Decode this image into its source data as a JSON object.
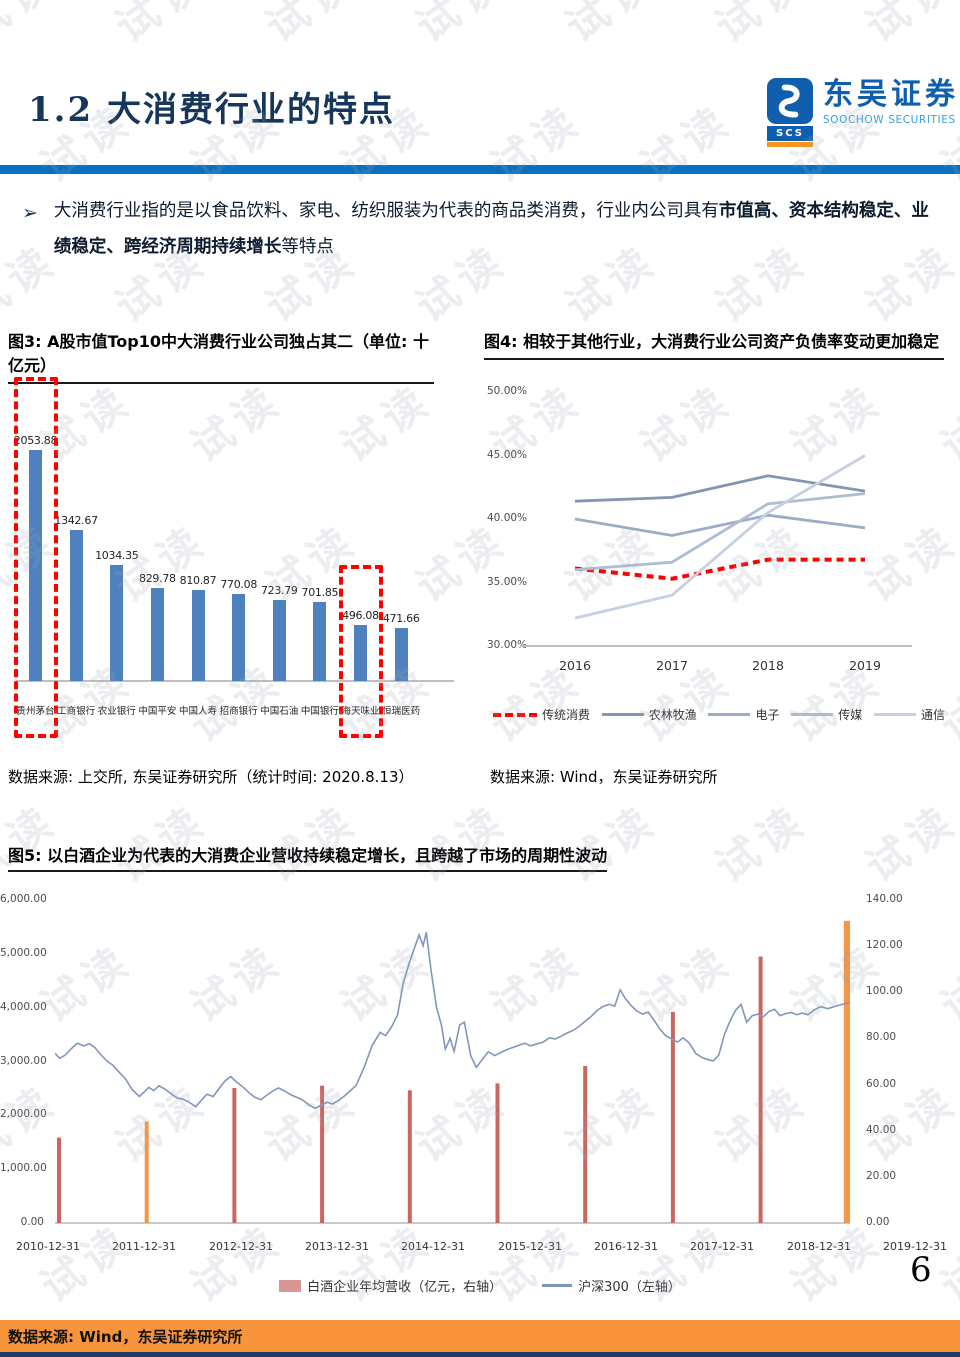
{
  "page": {
    "number": "6",
    "watermark": "试读"
  },
  "header": {
    "title": "1.2 大消费行业的特点",
    "logo": {
      "cn": "东吴证券",
      "en": "SOOCHOW SECURITIES",
      "abbr": "SCS"
    }
  },
  "intro": {
    "bullet": "➢",
    "lead": "大消费行业指的是以食品饮料、家电、纺织服装为代表的商品类消费，行业内公司具有",
    "emphasis": "市值高、资本结构稳定、业绩稳定、跨经济周期持续增长",
    "tail": "等特点"
  },
  "fig3": {
    "title": "图3: A股市值Top10中大消费行业公司独占其二（单位: 十亿元）",
    "source": "数据来源: 上交所, 东吴证券研究所（统计时间: 2020.8.13）"
  },
  "fig4": {
    "title": "图4: 相较于其他行业，大消费行业公司资产负债率变动更加稳定",
    "source": "数据来源: Wind，东吴证券研究所"
  },
  "fig5": {
    "title": "图5: 以白酒企业为代表的大消费企业营收持续稳定增长，且跨越了市场的周期性波动"
  },
  "footer": {
    "source": "数据来源: Wind，东吴证券研究所"
  },
  "chart_data": [
    {
      "type": "bar",
      "title": "图3: A股市值Top10中大消费行业公司独占其二（单位: 十亿元）",
      "unit": "十亿元",
      "categories": [
        "贵州茅台",
        "工商银行",
        "农业银行",
        "中国平安",
        "中国人寿",
        "招商银行",
        "中国石油",
        "中国银行",
        "海天味业",
        "恒瑞医药"
      ],
      "values": [
        2053.88,
        1342.67,
        1034.35,
        829.78,
        810.87,
        770.08,
        723.79,
        701.85,
        496.08,
        471.66
      ],
      "bar_color": "#4E81BD",
      "highlight_indexes": [
        0,
        8
      ],
      "highlight_style": "red-dashed-box",
      "ylim": [
        0,
        2100
      ],
      "grid": false
    },
    {
      "type": "line",
      "title": "图4: 相较于其他行业，大消费行业公司资产负债率变动更加稳定",
      "x": [
        "2016",
        "2017",
        "2018",
        "2019"
      ],
      "ylim": [
        30,
        50
      ],
      "yticks": [
        "30.00%",
        "35.00%",
        "40.00%",
        "45.00%",
        "50.00%"
      ],
      "legend_position": "bottom",
      "grid": false,
      "series": [
        {
          "name": "传统消费",
          "values": [
            36.1,
            35.3,
            36.8,
            36.8
          ],
          "color": "#FF0000",
          "dash": true
        },
        {
          "name": "农林牧渔",
          "values": [
            41.4,
            41.7,
            43.4,
            42.2
          ],
          "color": "#8496B0",
          "dash": false
        },
        {
          "name": "电子",
          "values": [
            40.0,
            38.7,
            40.3,
            39.3
          ],
          "color": "#9CACC6",
          "dash": false
        },
        {
          "name": "传媒",
          "values": [
            36.0,
            36.6,
            41.2,
            42.0
          ],
          "color": "#AFBDD4",
          "dash": false
        },
        {
          "name": "通信",
          "values": [
            32.2,
            34.0,
            40.5,
            45.0
          ],
          "color": "#C6D0E2",
          "dash": false
        }
      ]
    },
    {
      "type": "combo",
      "title": "图5: 以白酒企业为代表的大消费企业营收持续稳定增长，且跨越了市场的周期性波动",
      "categories": [
        "2010-12-31",
        "2011-12-31",
        "2012-12-31",
        "2013-12-31",
        "2014-12-31",
        "2015-12-31",
        "2016-12-31",
        "2017-12-31",
        "2018-12-31",
        "2019-12-31"
      ],
      "left_axis": {
        "range": [
          0,
          6000
        ],
        "ticks": [
          "0.00",
          "1,000.00",
          "2,000.00",
          "3,000.00",
          "4,000.00",
          "5,000.00",
          "6,000.00"
        ]
      },
      "right_axis": {
        "range": [
          0,
          140
        ],
        "ticks": [
          "0.00",
          "20.00",
          "40.00",
          "60.00",
          "80.00",
          "100.00",
          "120.00",
          "140.00"
        ]
      },
      "bar_series": {
        "name": "白酒企业年均营收（亿元，右轴）",
        "axis": "right",
        "values": [
          37,
          44,
          58.5,
          59.5,
          57.5,
          60.5,
          68,
          91.5,
          115.5,
          131
        ],
        "colors": [
          "#CA6560",
          "#F79646",
          "#CA6560",
          "#CA6560",
          "#CA6560",
          "#CA6560",
          "#CA6560",
          "#CA6560",
          "#CA6560",
          "#F79646"
        ],
        "legend_swatch": "#D99694"
      },
      "line_series": {
        "name": "沪深300（左轴）",
        "axis": "left",
        "color": "#8096BC",
        "points": [
          [
            0.0,
            3150
          ],
          [
            0.006,
            3060
          ],
          [
            0.013,
            3120
          ],
          [
            0.02,
            3230
          ],
          [
            0.028,
            3340
          ],
          [
            0.036,
            3290
          ],
          [
            0.043,
            3330
          ],
          [
            0.05,
            3260
          ],
          [
            0.058,
            3120
          ],
          [
            0.066,
            3000
          ],
          [
            0.073,
            2930
          ],
          [
            0.08,
            2810
          ],
          [
            0.088,
            2690
          ],
          [
            0.097,
            2480
          ],
          [
            0.106,
            2350
          ],
          [
            0.112,
            2430
          ],
          [
            0.118,
            2520
          ],
          [
            0.124,
            2460
          ],
          [
            0.131,
            2550
          ],
          [
            0.139,
            2480
          ],
          [
            0.147,
            2390
          ],
          [
            0.154,
            2320
          ],
          [
            0.161,
            2300
          ],
          [
            0.169,
            2240
          ],
          [
            0.177,
            2160
          ],
          [
            0.184,
            2280
          ],
          [
            0.191,
            2390
          ],
          [
            0.199,
            2350
          ],
          [
            0.208,
            2530
          ],
          [
            0.214,
            2640
          ],
          [
            0.221,
            2720
          ],
          [
            0.229,
            2610
          ],
          [
            0.237,
            2520
          ],
          [
            0.244,
            2420
          ],
          [
            0.251,
            2340
          ],
          [
            0.259,
            2290
          ],
          [
            0.266,
            2370
          ],
          [
            0.274,
            2450
          ],
          [
            0.281,
            2510
          ],
          [
            0.289,
            2450
          ],
          [
            0.297,
            2380
          ],
          [
            0.305,
            2330
          ],
          [
            0.312,
            2280
          ],
          [
            0.32,
            2190
          ],
          [
            0.327,
            2130
          ],
          [
            0.334,
            2180
          ],
          [
            0.342,
            2240
          ],
          [
            0.349,
            2210
          ],
          [
            0.357,
            2280
          ],
          [
            0.364,
            2360
          ],
          [
            0.371,
            2450
          ],
          [
            0.379,
            2560
          ],
          [
            0.389,
            2900
          ],
          [
            0.399,
            3300
          ],
          [
            0.409,
            3540
          ],
          [
            0.416,
            3480
          ],
          [
            0.424,
            3660
          ],
          [
            0.431,
            3870
          ],
          [
            0.438,
            4450
          ],
          [
            0.446,
            4850
          ],
          [
            0.452,
            5100
          ],
          [
            0.458,
            5350
          ],
          [
            0.463,
            5150
          ],
          [
            0.467,
            5400
          ],
          [
            0.473,
            4700
          ],
          [
            0.48,
            4000
          ],
          [
            0.486,
            3680
          ],
          [
            0.491,
            3230
          ],
          [
            0.497,
            3430
          ],
          [
            0.502,
            3190
          ],
          [
            0.509,
            3680
          ],
          [
            0.515,
            3730
          ],
          [
            0.523,
            3100
          ],
          [
            0.53,
            2890
          ],
          [
            0.538,
            3050
          ],
          [
            0.545,
            3180
          ],
          [
            0.553,
            3110
          ],
          [
            0.56,
            3160
          ],
          [
            0.568,
            3220
          ],
          [
            0.576,
            3260
          ],
          [
            0.583,
            3300
          ],
          [
            0.591,
            3340
          ],
          [
            0.598,
            3290
          ],
          [
            0.607,
            3330
          ],
          [
            0.614,
            3360
          ],
          [
            0.622,
            3440
          ],
          [
            0.629,
            3420
          ],
          [
            0.637,
            3470
          ],
          [
            0.644,
            3530
          ],
          [
            0.652,
            3580
          ],
          [
            0.659,
            3650
          ],
          [
            0.667,
            3750
          ],
          [
            0.674,
            3830
          ],
          [
            0.682,
            3950
          ],
          [
            0.689,
            4020
          ],
          [
            0.697,
            4060
          ],
          [
            0.704,
            4030
          ],
          [
            0.711,
            4330
          ],
          [
            0.717,
            4180
          ],
          [
            0.724,
            4050
          ],
          [
            0.731,
            3950
          ],
          [
            0.739,
            3880
          ],
          [
            0.746,
            3920
          ],
          [
            0.753,
            3780
          ],
          [
            0.761,
            3600
          ],
          [
            0.768,
            3480
          ],
          [
            0.776,
            3420
          ],
          [
            0.783,
            3360
          ],
          [
            0.79,
            3440
          ],
          [
            0.798,
            3340
          ],
          [
            0.806,
            3150
          ],
          [
            0.813,
            3080
          ],
          [
            0.82,
            3040
          ],
          [
            0.828,
            3010
          ],
          [
            0.835,
            3120
          ],
          [
            0.842,
            3500
          ],
          [
            0.849,
            3750
          ],
          [
            0.856,
            3950
          ],
          [
            0.863,
            4060
          ],
          [
            0.87,
            3730
          ],
          [
            0.877,
            3850
          ],
          [
            0.884,
            3880
          ],
          [
            0.891,
            3830
          ],
          [
            0.898,
            3930
          ],
          [
            0.905,
            3970
          ],
          [
            0.912,
            3850
          ],
          [
            0.919,
            3890
          ],
          [
            0.926,
            3910
          ],
          [
            0.933,
            3870
          ],
          [
            0.94,
            3900
          ],
          [
            0.947,
            3870
          ],
          [
            0.954,
            3950
          ],
          [
            0.963,
            4020
          ],
          [
            0.972,
            3980
          ],
          [
            0.985,
            4040
          ],
          [
            1.0,
            4100
          ]
        ]
      }
    }
  ]
}
